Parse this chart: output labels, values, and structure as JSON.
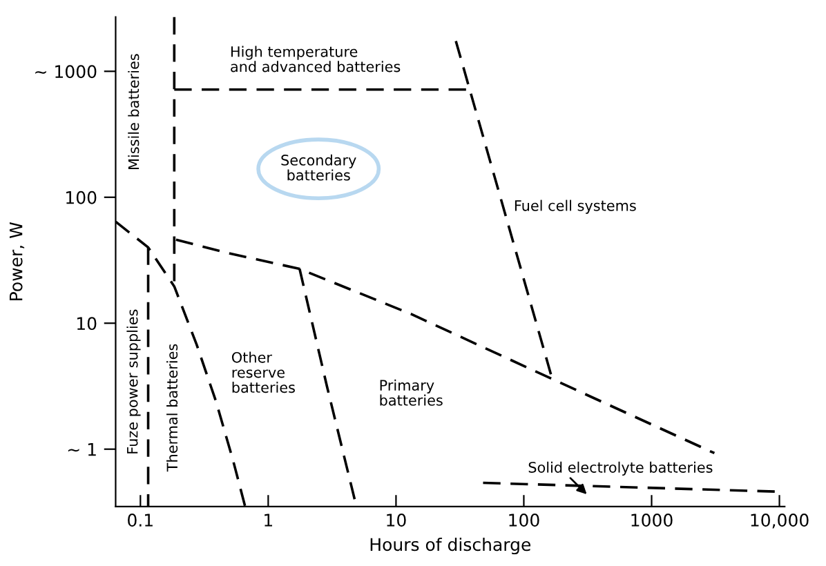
{
  "chart_data": {
    "type": "line",
    "xlabel": "Hours of discharge",
    "ylabel": "Power, W",
    "log": "xy",
    "grid": false,
    "line_style": "dashed",
    "marker": "none",
    "xlim": [
      0.064,
      11000
    ],
    "ylim": [
      0.35,
      2700
    ],
    "xticks": [
      0.1,
      1,
      10,
      100,
      1000,
      {
        "value": 10000,
        "label": "10,000"
      }
    ],
    "yticks": [
      {
        "value": 1,
        "label": "~ 1"
      },
      10,
      100,
      {
        "value": 1000,
        "label": "~ 1000"
      }
    ],
    "series": [
      {
        "color": "#000000",
        "x": [
          0.184,
          0.184
        ],
        "values": [
          2700,
          19.6
        ]
      },
      {
        "color": "#000000",
        "x": [
          0.064,
          0.115,
          0.184,
          0.275,
          0.39,
          0.53,
          0.66
        ],
        "values": [
          64,
          40,
          19.6,
          6.8,
          2.4,
          0.82,
          0.35
        ]
      },
      {
        "color": "#000000",
        "x": [
          0.115,
          0.115
        ],
        "values": [
          40,
          0.35
        ]
      },
      {
        "color": "#000000",
        "x": [
          0.184,
          36
        ],
        "values": [
          716,
          716
        ]
      },
      {
        "color": "#000000",
        "x": [
          29.4,
          167
        ],
        "values": [
          1740,
          3.6
        ]
      },
      {
        "color": "#000000",
        "x": [
          0.19,
          0.49,
          1.76,
          13.2,
          167,
          3100
        ],
        "values": [
          46,
          36,
          27,
          11.8,
          3.6,
          0.93
        ]
      },
      {
        "color": "#000000",
        "x": [
          1.76,
          2.88,
          4.9
        ],
        "values": [
          27,
          3.16,
          0.35
        ]
      },
      {
        "color": "#000000",
        "x": [
          48,
          9600
        ],
        "values": [
          0.54,
          0.46
        ]
      }
    ],
    "annotations": [
      "High temperature\nand advanced batteries",
      "Missile batteries",
      "Secondary\nbatteries",
      "Fuel cell systems",
      "Fuze power supplies",
      "Thermal batteries",
      "Other\nreserve\nbatteries",
      "Primary\nbatteries",
      "Solid electrolyte batteries"
    ]
  }
}
